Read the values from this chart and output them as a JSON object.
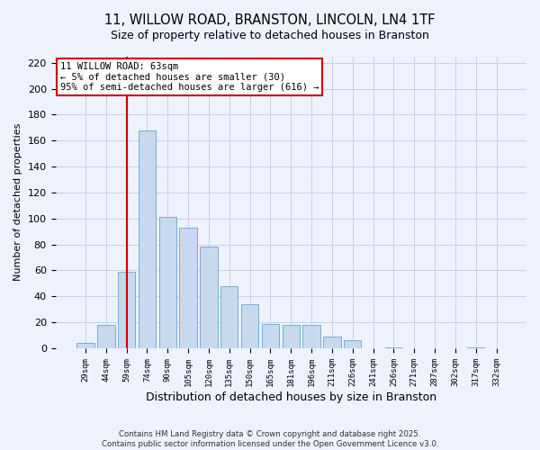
{
  "title1": "11, WILLOW ROAD, BRANSTON, LINCOLN, LN4 1TF",
  "title2": "Size of property relative to detached houses in Branston",
  "xlabel": "Distribution of detached houses by size in Branston",
  "ylabel": "Number of detached properties",
  "bar_labels": [
    "29sqm",
    "44sqm",
    "59sqm",
    "74sqm",
    "90sqm",
    "105sqm",
    "120sqm",
    "135sqm",
    "150sqm",
    "165sqm",
    "181sqm",
    "196sqm",
    "211sqm",
    "226sqm",
    "241sqm",
    "256sqm",
    "271sqm",
    "287sqm",
    "302sqm",
    "317sqm",
    "332sqm"
  ],
  "bar_values": [
    4,
    18,
    59,
    168,
    101,
    93,
    78,
    48,
    34,
    19,
    18,
    18,
    9,
    6,
    0,
    1,
    0,
    0,
    0,
    1,
    0
  ],
  "bar_color": "#c8d8ee",
  "bar_edge_color": "#7aacd4",
  "vline_x_idx": 2,
  "vline_color": "#cc0000",
  "annotation_title": "11 WILLOW ROAD: 63sqm",
  "annotation_line1": "← 5% of detached houses are smaller (30)",
  "annotation_line2": "95% of semi-detached houses are larger (616) →",
  "annotation_box_color": "#ffffff",
  "annotation_box_edge": "#cc0000",
  "ylim": [
    0,
    225
  ],
  "yticks": [
    0,
    20,
    40,
    60,
    80,
    100,
    120,
    140,
    160,
    180,
    200,
    220
  ],
  "footer1": "Contains HM Land Registry data © Crown copyright and database right 2025.",
  "footer2": "Contains public sector information licensed under the Open Government Licence v3.0.",
  "bg_color": "#eef2fb",
  "grid_color": "#c8cfe8",
  "title_fontsize": 10.5,
  "subtitle_fontsize": 9
}
